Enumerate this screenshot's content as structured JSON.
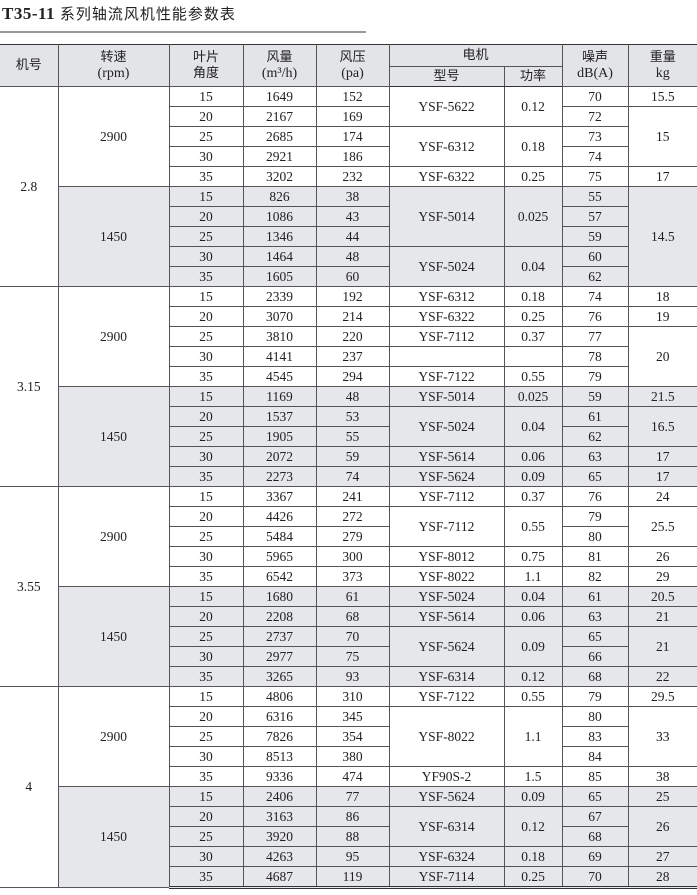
{
  "title": {
    "code": "T35-11",
    "text": "系列轴流风机性能参数表"
  },
  "header": {
    "machine": "机号",
    "speed": "转速",
    "speed_unit": "(rpm)",
    "blade": "叶片",
    "blade2": "角度",
    "flow": "风量",
    "flow_unit": "(m³/h)",
    "pressure": "风压",
    "pressure_unit": "(pa)",
    "motor": "电机",
    "model": "型号",
    "power": "功率",
    "noise": "噪声",
    "noise_unit": "dB(A)",
    "weight": "重量",
    "weight_unit": "kg"
  },
  "colors": {
    "shade": "#e6e7ea",
    "header": "#e3e4e7"
  },
  "groups": [
    {
      "machine": "2.8",
      "blocks": [
        {
          "rpm": "2900",
          "shaded": false,
          "angles": [
            "15",
            "20",
            "25",
            "30",
            "35"
          ],
          "flow": [
            "1649",
            "2167",
            "2685",
            "2921",
            "3202"
          ],
          "pressure": [
            "152",
            "169",
            "174",
            "186",
            "232"
          ],
          "noise": [
            "70",
            "72",
            "73",
            "74",
            "75"
          ],
          "motors": [
            {
              "model": "YSF-5622",
              "power": "0.12",
              "span": 2
            },
            {
              "model": "YSF-6312",
              "power": "0.18",
              "span": 2
            },
            {
              "model": "YSF-6322",
              "power": "0.25",
              "span": 1
            }
          ],
          "weights": [
            {
              "value": "15.5",
              "span": 1
            },
            {
              "value": "15",
              "span": 3
            },
            {
              "value": "17",
              "span": 1
            }
          ]
        },
        {
          "rpm": "1450",
          "shaded": true,
          "angles": [
            "15",
            "20",
            "25",
            "30",
            "35"
          ],
          "flow": [
            "826",
            "1086",
            "1346",
            "1464",
            "1605"
          ],
          "pressure": [
            "38",
            "43",
            "44",
            "48",
            "60"
          ],
          "noise": [
            "55",
            "57",
            "59",
            "60",
            "62"
          ],
          "motors": [
            {
              "model": "YSF-5014",
              "power": "0.025",
              "span": 3
            },
            {
              "model": "YSF-5024",
              "power": "0.04",
              "span": 2
            }
          ],
          "weights": [
            {
              "value": "14.5",
              "span": 5
            }
          ]
        }
      ]
    },
    {
      "machine": "3.15",
      "blocks": [
        {
          "rpm": "2900",
          "shaded": false,
          "angles": [
            "15",
            "20",
            "25",
            "30",
            "35"
          ],
          "flow": [
            "2339",
            "3070",
            "3810",
            "4141",
            "4545"
          ],
          "pressure": [
            "192",
            "214",
            "220",
            "237",
            "294"
          ],
          "noise": [
            "74",
            "76",
            "77",
            "78",
            "79"
          ],
          "motors": [
            {
              "model": "YSF-6312",
              "power": "0.18",
              "span": 1
            },
            {
              "model": "YSF-6322",
              "power": "0.25",
              "span": 1
            },
            {
              "model": "YSF-7112",
              "power": "0.37",
              "span": 1
            },
            {
              "model": "",
              "power": "",
              "span": 1
            },
            {
              "model": "YSF-7122",
              "power": "0.55",
              "span": 1
            }
          ],
          "weights": [
            {
              "value": "18",
              "span": 1
            },
            {
              "value": "19",
              "span": 1
            },
            {
              "value": "20",
              "span": 3
            }
          ]
        },
        {
          "rpm": "1450",
          "shaded": true,
          "angles": [
            "15",
            "20",
            "25",
            "30",
            "35"
          ],
          "flow": [
            "1169",
            "1537",
            "1905",
            "2072",
            "2273"
          ],
          "pressure": [
            "48",
            "53",
            "55",
            "59",
            "74"
          ],
          "noise": [
            "59",
            "61",
            "62",
            "63",
            "65"
          ],
          "motors": [
            {
              "model": "YSF-5014",
              "power": "0.025",
              "span": 1
            },
            {
              "model": "YSF-5024",
              "power": "0.04",
              "span": 2
            },
            {
              "model": "YSF-5614",
              "power": "0.06",
              "span": 1
            },
            {
              "model": "YSF-5624",
              "power": "0.09",
              "span": 1
            }
          ],
          "weights": [
            {
              "value": "21.5",
              "span": 1
            },
            {
              "value": "16.5",
              "span": 2
            },
            {
              "value": "17",
              "span": 1
            },
            {
              "value": "17",
              "span": 1
            }
          ]
        }
      ]
    },
    {
      "machine": "3.55",
      "blocks": [
        {
          "rpm": "2900",
          "shaded": false,
          "angles": [
            "15",
            "20",
            "25",
            "30",
            "35"
          ],
          "flow": [
            "3367",
            "4426",
            "5484",
            "5965",
            "6542"
          ],
          "pressure": [
            "241",
            "272",
            "279",
            "300",
            "373"
          ],
          "noise": [
            "76",
            "79",
            "80",
            "81",
            "82"
          ],
          "motors": [
            {
              "model": "YSF-7112",
              "power": "0.37",
              "span": 1
            },
            {
              "model": "YSF-7112",
              "power": "0.55",
              "span": 2
            },
            {
              "model": "YSF-8012",
              "power": "0.75",
              "span": 1
            },
            {
              "model": "YSF-8022",
              "power": "1.1",
              "span": 1
            }
          ],
          "weights": [
            {
              "value": "24",
              "span": 1
            },
            {
              "value": "25.5",
              "span": 2
            },
            {
              "value": "26",
              "span": 1
            },
            {
              "value": "29",
              "span": 1
            }
          ]
        },
        {
          "rpm": "1450",
          "shaded": true,
          "angles": [
            "15",
            "20",
            "25",
            "30",
            "35"
          ],
          "flow": [
            "1680",
            "2208",
            "2737",
            "2977",
            "3265"
          ],
          "pressure": [
            "61",
            "68",
            "70",
            "75",
            "93"
          ],
          "noise": [
            "61",
            "63",
            "65",
            "66",
            "68"
          ],
          "motors": [
            {
              "model": "YSF-5024",
              "power": "0.04",
              "span": 1
            },
            {
              "model": "YSF-5614",
              "power": "0.06",
              "span": 1
            },
            {
              "model": "YSF-5624",
              "power": "0.09",
              "span": 2
            },
            {
              "model": "YSF-6314",
              "power": "0.12",
              "span": 1
            }
          ],
          "weights": [
            {
              "value": "20.5",
              "span": 1
            },
            {
              "value": "21",
              "span": 1
            },
            {
              "value": "21",
              "span": 2
            },
            {
              "value": "22",
              "span": 1
            }
          ]
        }
      ]
    },
    {
      "machine": "4",
      "blocks": [
        {
          "rpm": "2900",
          "shaded": false,
          "angles": [
            "15",
            "20",
            "25",
            "30",
            "35"
          ],
          "flow": [
            "4806",
            "6316",
            "7826",
            "8513",
            "9336"
          ],
          "pressure": [
            "310",
            "345",
            "354",
            "380",
            "474"
          ],
          "noise": [
            "79",
            "80",
            "83",
            "84",
            "85"
          ],
          "motors": [
            {
              "model": "YSF-7122",
              "power": "0.55",
              "span": 1
            },
            {
              "model": "YSF-8022",
              "power": "1.1",
              "span": 3
            },
            {
              "model": "YF90S-2",
              "power": "1.5",
              "span": 1
            }
          ],
          "weights": [
            {
              "value": "29.5",
              "span": 1
            },
            {
              "value": "33",
              "span": 3
            },
            {
              "value": "38",
              "span": 1
            }
          ]
        },
        {
          "rpm": "1450",
          "shaded": true,
          "angles": [
            "15",
            "20",
            "25",
            "30",
            "35"
          ],
          "flow": [
            "2406",
            "3163",
            "3920",
            "4263",
            "4687"
          ],
          "pressure": [
            "77",
            "86",
            "88",
            "95",
            "119"
          ],
          "noise": [
            "65",
            "67",
            "68",
            "69",
            "70"
          ],
          "motors": [
            {
              "model": "YSF-5624",
              "power": "0.09",
              "span": 1
            },
            {
              "model": "YSF-6314",
              "power": "0.12",
              "span": 2
            },
            {
              "model": "YSF-6324",
              "power": "0.18",
              "span": 1
            },
            {
              "model": "YSF-7114",
              "power": "0.25",
              "span": 1
            }
          ],
          "weights": [
            {
              "value": "25",
              "span": 1
            },
            {
              "value": "26",
              "span": 2
            },
            {
              "value": "27",
              "span": 1
            },
            {
              "value": "28",
              "span": 1
            }
          ]
        }
      ]
    }
  ]
}
